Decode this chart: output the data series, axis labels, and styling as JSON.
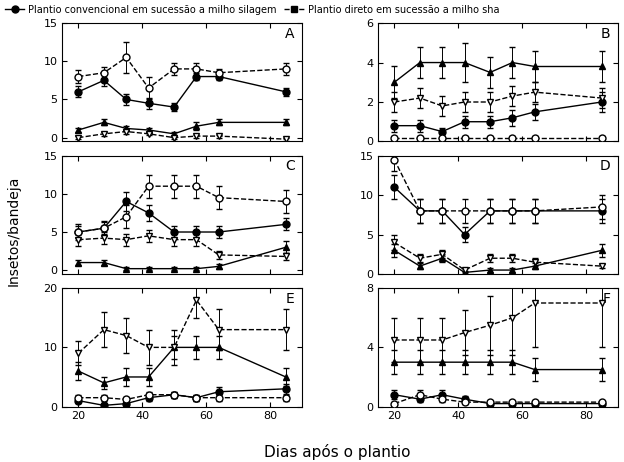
{
  "x": [
    20,
    28,
    35,
    42,
    50,
    57,
    64,
    85
  ],
  "panels": [
    {
      "label": "A",
      "ylim": [
        -0.5,
        15
      ],
      "yticks": [
        0,
        5,
        10,
        15
      ],
      "series": [
        {
          "y": [
            6.0,
            7.5,
            5.0,
            4.5,
            4.0,
            8.0,
            8.0,
            6.0
          ],
          "yerr": [
            0.7,
            0.7,
            0.7,
            0.7,
            0.5,
            0.5,
            0.5,
            0.5
          ],
          "marker": "o",
          "fill": true,
          "linestyle": "-"
        },
        {
          "y": [
            8.0,
            8.5,
            10.5,
            6.5,
            9.0,
            9.0,
            8.5,
            9.0
          ],
          "yerr": [
            0.8,
            0.8,
            2.0,
            1.5,
            0.8,
            0.8,
            0.5,
            0.8
          ],
          "marker": "o",
          "fill": false,
          "linestyle": "--"
        },
        {
          "y": [
            1.0,
            2.0,
            1.2,
            1.0,
            0.5,
            1.5,
            2.0,
            2.0
          ],
          "yerr": [
            0.3,
            0.4,
            0.3,
            0.3,
            0.2,
            0.5,
            0.4,
            0.4
          ],
          "marker": "^",
          "fill": true,
          "linestyle": "-"
        },
        {
          "y": [
            0.0,
            0.5,
            0.8,
            0.5,
            0.0,
            0.2,
            0.2,
            -0.2
          ],
          "yerr": [
            0.2,
            0.3,
            0.3,
            0.2,
            0.2,
            0.2,
            0.2,
            0.2
          ],
          "marker": "v",
          "fill": false,
          "linestyle": "--"
        }
      ]
    },
    {
      "label": "B",
      "ylim": [
        0,
        6
      ],
      "yticks": [
        0,
        2,
        4,
        6
      ],
      "series": [
        {
          "y": [
            0.8,
            0.8,
            0.5,
            1.0,
            1.0,
            1.2,
            1.5,
            2.0
          ],
          "yerr": [
            0.3,
            0.3,
            0.2,
            0.3,
            0.3,
            0.4,
            0.4,
            0.5
          ],
          "marker": "o",
          "fill": true,
          "linestyle": "-"
        },
        {
          "y": [
            0.2,
            0.2,
            0.2,
            0.2,
            0.2,
            0.2,
            0.2,
            0.2
          ],
          "yerr": [
            0.1,
            0.1,
            0.1,
            0.1,
            0.1,
            0.1,
            0.1,
            0.1
          ],
          "marker": "o",
          "fill": false,
          "linestyle": "--"
        },
        {
          "y": [
            3.0,
            4.0,
            4.0,
            4.0,
            3.5,
            4.0,
            3.8,
            3.8
          ],
          "yerr": [
            0.8,
            0.8,
            0.8,
            1.0,
            0.8,
            0.8,
            0.8,
            0.8
          ],
          "marker": "^",
          "fill": true,
          "linestyle": "-"
        },
        {
          "y": [
            2.0,
            2.2,
            1.8,
            2.0,
            2.0,
            2.3,
            2.5,
            2.2
          ],
          "yerr": [
            0.5,
            0.5,
            0.5,
            0.5,
            0.5,
            0.5,
            0.5,
            0.5
          ],
          "marker": "v",
          "fill": false,
          "linestyle": "--"
        }
      ]
    },
    {
      "label": "C",
      "ylim": [
        -0.5,
        15
      ],
      "yticks": [
        0,
        5,
        10,
        15
      ],
      "series": [
        {
          "y": [
            5.0,
            5.5,
            9.0,
            7.5,
            5.0,
            5.0,
            5.0,
            6.0
          ],
          "yerr": [
            0.8,
            0.8,
            1.2,
            1.0,
            0.8,
            0.8,
            0.8,
            0.8
          ],
          "marker": "o",
          "fill": true,
          "linestyle": "-"
        },
        {
          "y": [
            5.0,
            5.5,
            7.0,
            11.0,
            11.0,
            11.0,
            9.5,
            9.0
          ],
          "yerr": [
            1.0,
            1.0,
            1.5,
            1.5,
            1.5,
            1.5,
            1.5,
            1.5
          ],
          "marker": "o",
          "fill": false,
          "linestyle": "--"
        },
        {
          "y": [
            1.0,
            1.0,
            0.2,
            0.2,
            0.2,
            0.2,
            0.5,
            3.0
          ],
          "yerr": [
            0.3,
            0.3,
            0.2,
            0.2,
            0.2,
            0.2,
            0.3,
            0.8
          ],
          "marker": "^",
          "fill": true,
          "linestyle": "-"
        },
        {
          "y": [
            4.0,
            4.2,
            4.0,
            4.5,
            4.0,
            4.0,
            2.0,
            1.8
          ],
          "yerr": [
            0.8,
            0.8,
            0.8,
            0.8,
            0.8,
            0.8,
            0.5,
            0.5
          ],
          "marker": "v",
          "fill": false,
          "linestyle": "--"
        }
      ]
    },
    {
      "label": "D",
      "ylim": [
        0,
        15
      ],
      "yticks": [
        0,
        5,
        10,
        15
      ],
      "series": [
        {
          "y": [
            11.0,
            8.0,
            8.0,
            5.0,
            8.0,
            8.0,
            8.0,
            8.0
          ],
          "yerr": [
            1.5,
            1.5,
            1.5,
            1.0,
            1.5,
            1.5,
            1.5,
            1.5
          ],
          "marker": "o",
          "fill": true,
          "linestyle": "-"
        },
        {
          "y": [
            14.5,
            8.0,
            8.0,
            8.0,
            8.0,
            8.0,
            8.0,
            8.5
          ],
          "yerr": [
            1.5,
            1.5,
            1.5,
            1.5,
            1.5,
            1.5,
            1.5,
            1.5
          ],
          "marker": "o",
          "fill": false,
          "linestyle": "--"
        },
        {
          "y": [
            3.0,
            1.0,
            2.0,
            0.2,
            0.5,
            0.5,
            1.0,
            3.0
          ],
          "yerr": [
            0.8,
            0.4,
            0.5,
            0.2,
            0.3,
            0.3,
            0.4,
            0.8
          ],
          "marker": "^",
          "fill": true,
          "linestyle": "-"
        },
        {
          "y": [
            4.0,
            2.0,
            2.5,
            0.5,
            2.0,
            2.0,
            1.5,
            1.0
          ],
          "yerr": [
            1.0,
            0.5,
            0.5,
            0.3,
            0.5,
            0.5,
            0.5,
            0.3
          ],
          "marker": "v",
          "fill": false,
          "linestyle": "--"
        }
      ]
    },
    {
      "label": "E",
      "ylim": [
        0,
        20
      ],
      "yticks": [
        0,
        10,
        20
      ],
      "series": [
        {
          "y": [
            1.0,
            0.2,
            0.5,
            1.5,
            2.0,
            1.5,
            2.5,
            3.0
          ],
          "yerr": [
            0.4,
            0.2,
            0.3,
            0.5,
            0.5,
            0.5,
            0.8,
            0.8
          ],
          "marker": "o",
          "fill": true,
          "linestyle": "-"
        },
        {
          "y": [
            1.5,
            1.5,
            1.2,
            2.0,
            2.0,
            1.5,
            1.5,
            1.5
          ],
          "yerr": [
            0.5,
            0.5,
            0.4,
            0.5,
            0.5,
            0.5,
            0.5,
            0.5
          ],
          "marker": "o",
          "fill": false,
          "linestyle": "--"
        },
        {
          "y": [
            6.0,
            4.0,
            5.0,
            5.0,
            10.0,
            10.0,
            10.0,
            5.0
          ],
          "yerr": [
            1.5,
            1.0,
            1.5,
            1.5,
            2.0,
            2.0,
            2.0,
            1.5
          ],
          "marker": "^",
          "fill": true,
          "linestyle": "-"
        },
        {
          "y": [
            9.0,
            13.0,
            12.0,
            10.0,
            10.0,
            18.0,
            13.0,
            13.0
          ],
          "yerr": [
            2.0,
            3.0,
            3.0,
            3.0,
            3.0,
            3.0,
            3.5,
            3.5
          ],
          "marker": "v",
          "fill": false,
          "linestyle": "--"
        }
      ]
    },
    {
      "label": "F",
      "ylim": [
        0,
        8
      ],
      "yticks": [
        0,
        4,
        8
      ],
      "series": [
        {
          "y": [
            0.8,
            0.5,
            0.8,
            0.5,
            0.2,
            0.2,
            0.2,
            0.2
          ],
          "yerr": [
            0.3,
            0.2,
            0.3,
            0.2,
            0.1,
            0.1,
            0.1,
            0.1
          ],
          "marker": "o",
          "fill": true,
          "linestyle": "-"
        },
        {
          "y": [
            0.2,
            0.8,
            0.5,
            0.3,
            0.3,
            0.3,
            0.3,
            0.3
          ],
          "yerr": [
            0.1,
            0.3,
            0.2,
            0.1,
            0.1,
            0.1,
            0.1,
            0.1
          ],
          "marker": "o",
          "fill": false,
          "linestyle": "--"
        },
        {
          "y": [
            3.0,
            3.0,
            3.0,
            3.0,
            3.0,
            3.0,
            2.5,
            2.5
          ],
          "yerr": [
            0.8,
            0.8,
            0.8,
            0.8,
            0.8,
            0.8,
            0.8,
            0.8
          ],
          "marker": "^",
          "fill": true,
          "linestyle": "-"
        },
        {
          "y": [
            4.5,
            4.5,
            4.5,
            5.0,
            5.5,
            6.0,
            7.0,
            7.0
          ],
          "yerr": [
            1.5,
            1.5,
            1.5,
            1.5,
            2.0,
            2.5,
            3.0,
            3.0
          ],
          "marker": "v",
          "fill": false,
          "linestyle": "--"
        }
      ]
    }
  ],
  "xlabel": "Dias após o plantio",
  "ylabel": "Insetos/bandeja",
  "legend1_label": "Plantio convencional em sucessão a milho silagem",
  "legend2_label": "Plantio direto em sucessão a milho sha",
  "xticks": [
    20,
    40,
    60,
    80
  ],
  "color": "black",
  "markersize": 5,
  "linewidth": 1.0,
  "capsize": 2
}
